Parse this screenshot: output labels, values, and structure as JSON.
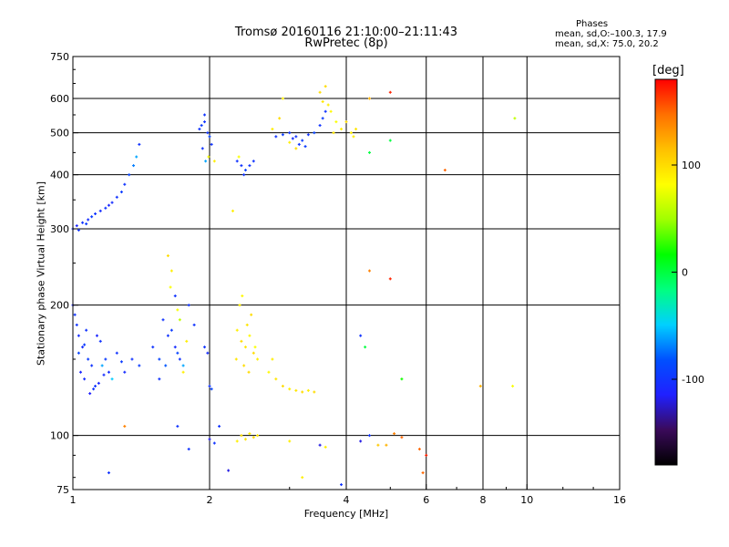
{
  "chart_data": {
    "type": "scatter",
    "title": "Tromsø 20160116 21:10:00–21:11:43",
    "subtitle": "RwPretec (8p)",
    "xlabel": "Frequency [MHz]",
    "ylabel": "Stationary phase Virtual Height [km]",
    "x_scale": "log2",
    "y_scale": "log",
    "xlim": [
      1,
      16
    ],
    "ylim": [
      75,
      750
    ],
    "x_ticks": [
      1,
      2,
      4,
      6,
      8,
      10,
      16
    ],
    "x_tick_labels": [
      "1",
      "2",
      "4",
      "6",
      "8",
      "10",
      "16"
    ],
    "x_gridlines": [
      2,
      4,
      6,
      8,
      10
    ],
    "y_ticks": [
      75,
      100,
      200,
      300,
      400,
      500,
      600,
      750
    ],
    "y_tick_labels": [
      "75",
      "100",
      "200",
      "300",
      "400",
      "500",
      "600",
      "750"
    ],
    "y_gridlines": [
      100,
      200,
      300,
      400,
      500,
      600
    ],
    "grid": true,
    "legend": {
      "title": "Phases",
      "lines": [
        "mean, sd,O:–100.3, 17.9",
        "mean, sd,X:  75.0, 20.2"
      ]
    },
    "colorbar": {
      "label": "[deg]",
      "range": [
        -180,
        180
      ],
      "ticks": [
        -100,
        0,
        100
      ],
      "colors": [
        "#000000",
        "#3a0a5a",
        "#2020ff",
        "#0050ff",
        "#00d0ff",
        "#00ff80",
        "#00ff00",
        "#a0ff00",
        "#ffff00",
        "#ffc000",
        "#ff7000",
        "#ff0000"
      ]
    },
    "points": [
      [
        1.0,
        200,
        -110
      ],
      [
        1.02,
        180,
        -100
      ],
      [
        1.05,
        160,
        -105
      ],
      [
        1.08,
        150,
        -95
      ],
      [
        1.1,
        145,
        -100
      ],
      [
        1.04,
        140,
        -110
      ],
      [
        1.06,
        135,
        -105
      ],
      [
        1.12,
        130,
        -100
      ],
      [
        1.09,
        125,
        -115
      ],
      [
        1.03,
        155,
        -90
      ],
      [
        1.15,
        165,
        -100
      ],
      [
        1.18,
        150,
        -95
      ],
      [
        1.2,
        140,
        -105
      ],
      [
        1.13,
        170,
        -110
      ],
      [
        1.07,
        175,
        -100
      ],
      [
        1.16,
        145,
        -60
      ],
      [
        1.22,
        135,
        -50
      ],
      [
        1.25,
        155,
        -100
      ],
      [
        1.28,
        148,
        -95
      ],
      [
        1.3,
        140,
        -105
      ],
      [
        1.35,
        150,
        -100
      ],
      [
        1.4,
        145,
        -95
      ],
      [
        1.11,
        128,
        -100
      ],
      [
        1.14,
        132,
        -110
      ],
      [
        1.17,
        138,
        -105
      ],
      [
        1.01,
        190,
        -100
      ],
      [
        1.03,
        170,
        -105
      ],
      [
        1.06,
        162,
        -95
      ],
      [
        1.0,
        300,
        -105
      ],
      [
        1.02,
        305,
        -110
      ],
      [
        1.05,
        310,
        -100
      ],
      [
        1.08,
        315,
        -105
      ],
      [
        1.1,
        320,
        -95
      ],
      [
        1.12,
        325,
        -100
      ],
      [
        1.15,
        330,
        -105
      ],
      [
        1.18,
        335,
        -100
      ],
      [
        1.2,
        340,
        -110
      ],
      [
        1.22,
        345,
        -105
      ],
      [
        1.25,
        355,
        -100
      ],
      [
        1.28,
        365,
        -95
      ],
      [
        1.3,
        380,
        -100
      ],
      [
        1.33,
        400,
        -90
      ],
      [
        1.36,
        420,
        -70
      ],
      [
        1.38,
        440,
        -60
      ],
      [
        1.4,
        470,
        -100
      ],
      [
        1.03,
        298,
        -100
      ],
      [
        1.07,
        308,
        -95
      ],
      [
        1.5,
        160,
        -100
      ],
      [
        1.55,
        150,
        -90
      ],
      [
        1.6,
        145,
        -80
      ],
      [
        1.62,
        170,
        -100
      ],
      [
        1.65,
        175,
        -95
      ],
      [
        1.68,
        160,
        -105
      ],
      [
        1.7,
        155,
        -90
      ],
      [
        1.72,
        150,
        -100
      ],
      [
        1.75,
        145,
        -60
      ],
      [
        1.58,
        185,
        -100
      ],
      [
        1.62,
        260,
        100
      ],
      [
        1.65,
        240,
        90
      ],
      [
        1.64,
        220,
        80
      ],
      [
        1.68,
        210,
        -100
      ],
      [
        1.7,
        195,
        80
      ],
      [
        1.72,
        185,
        60
      ],
      [
        1.78,
        165,
        90
      ],
      [
        1.8,
        200,
        -100
      ],
      [
        1.85,
        180,
        -100
      ],
      [
        1.75,
        140,
        90
      ],
      [
        1.55,
        135,
        -100
      ],
      [
        1.95,
        160,
        -100
      ],
      [
        1.98,
        155,
        -105
      ],
      [
        2.0,
        130,
        -100
      ],
      [
        2.02,
        128,
        -90
      ],
      [
        1.9,
        510,
        -100
      ],
      [
        1.92,
        520,
        -95
      ],
      [
        1.95,
        530,
        -100
      ],
      [
        1.98,
        500,
        -100
      ],
      [
        2.0,
        490,
        -90
      ],
      [
        2.02,
        470,
        -100
      ],
      [
        1.93,
        460,
        -100
      ],
      [
        1.96,
        430,
        -60
      ],
      [
        1.99,
        440,
        80
      ],
      [
        1.95,
        550,
        -100
      ],
      [
        2.05,
        430,
        90
      ],
      [
        2.3,
        430,
        -100
      ],
      [
        2.35,
        420,
        -100
      ],
      [
        2.4,
        410,
        -90
      ],
      [
        2.45,
        420,
        -100
      ],
      [
        2.5,
        430,
        -100
      ],
      [
        2.32,
        440,
        80
      ],
      [
        2.38,
        400,
        -100
      ],
      [
        2.25,
        330,
        90
      ],
      [
        2.3,
        175,
        90
      ],
      [
        2.35,
        165,
        100
      ],
      [
        2.4,
        160,
        95
      ],
      [
        2.45,
        170,
        85
      ],
      [
        2.5,
        155,
        100
      ],
      [
        2.55,
        150,
        90
      ],
      [
        2.38,
        145,
        100
      ],
      [
        2.42,
        180,
        95
      ],
      [
        2.47,
        190,
        100
      ],
      [
        2.33,
        200,
        90
      ],
      [
        2.52,
        160,
        80
      ],
      [
        2.44,
        140,
        100
      ],
      [
        2.36,
        210,
        85
      ],
      [
        2.29,
        150,
        95
      ],
      [
        2.35,
        100,
        100
      ],
      [
        2.4,
        98,
        95
      ],
      [
        2.45,
        101,
        90
      ],
      [
        2.5,
        99,
        100
      ],
      [
        2.55,
        100,
        95
      ],
      [
        2.3,
        97,
        90
      ],
      [
        2.8,
        490,
        -100
      ],
      [
        2.9,
        495,
        -95
      ],
      [
        3.0,
        500,
        -100
      ],
      [
        3.05,
        485,
        -105
      ],
      [
        3.1,
        490,
        -100
      ],
      [
        3.2,
        480,
        -95
      ],
      [
        3.3,
        495,
        -100
      ],
      [
        3.4,
        500,
        -90
      ],
      [
        3.5,
        520,
        -100
      ],
      [
        3.55,
        540,
        -95
      ],
      [
        3.6,
        560,
        -100
      ],
      [
        3.15,
        470,
        -100
      ],
      [
        3.25,
        465,
        -95
      ],
      [
        3.0,
        475,
        90
      ],
      [
        3.1,
        460,
        100
      ],
      [
        2.9,
        600,
        90
      ],
      [
        3.5,
        620,
        100
      ],
      [
        3.55,
        590,
        95
      ],
      [
        3.65,
        580,
        90
      ],
      [
        3.7,
        560,
        85
      ],
      [
        3.6,
        640,
        100
      ],
      [
        3.8,
        530,
        80
      ],
      [
        3.9,
        510,
        90
      ],
      [
        3.75,
        500,
        95
      ],
      [
        2.75,
        510,
        90
      ],
      [
        2.85,
        540,
        100
      ],
      [
        2.8,
        135,
        95
      ],
      [
        2.9,
        130,
        100
      ],
      [
        3.0,
        128,
        90
      ],
      [
        3.1,
        127,
        95
      ],
      [
        3.2,
        126,
        100
      ],
      [
        3.3,
        127,
        90
      ],
      [
        3.4,
        126,
        100
      ],
      [
        2.7,
        140,
        85
      ],
      [
        2.75,
        150,
        90
      ],
      [
        4.1,
        500,
        90
      ],
      [
        4.2,
        510,
        95
      ],
      [
        4.15,
        490,
        90
      ],
      [
        4.0,
        530,
        100
      ],
      [
        4.5,
        450,
        0
      ],
      [
        5.0,
        480,
        0
      ],
      [
        4.5,
        600,
        120
      ],
      [
        5.0,
        620,
        170
      ],
      [
        6.6,
        410,
        150
      ],
      [
        9.4,
        540,
        60
      ],
      [
        4.5,
        240,
        140
      ],
      [
        5.0,
        230,
        170
      ],
      [
        5.3,
        135,
        20
      ],
      [
        7.9,
        130,
        120
      ],
      [
        9.3,
        130,
        80
      ],
      [
        4.3,
        170,
        -100
      ],
      [
        4.4,
        160,
        0
      ],
      [
        4.3,
        97,
        -120
      ],
      [
        4.5,
        100,
        -100
      ],
      [
        4.7,
        95,
        110
      ],
      [
        4.9,
        95,
        120
      ],
      [
        5.1,
        101,
        140
      ],
      [
        5.3,
        99,
        150
      ],
      [
        5.8,
        93,
        150
      ],
      [
        6.0,
        90,
        170
      ],
      [
        3.5,
        95,
        -120
      ],
      [
        3.6,
        94,
        90
      ],
      [
        3.9,
        77,
        -100
      ],
      [
        1.2,
        82,
        -100
      ],
      [
        1.8,
        93,
        -100
      ],
      [
        2.0,
        98,
        -120
      ],
      [
        2.05,
        96,
        -100
      ],
      [
        1.3,
        105,
        140
      ],
      [
        1.7,
        105,
        -100
      ],
      [
        2.1,
        105,
        -100
      ],
      [
        2.2,
        83,
        -120
      ],
      [
        3.0,
        97,
        90
      ],
      [
        3.2,
        80,
        90
      ],
      [
        5.9,
        82,
        150
      ]
    ]
  }
}
